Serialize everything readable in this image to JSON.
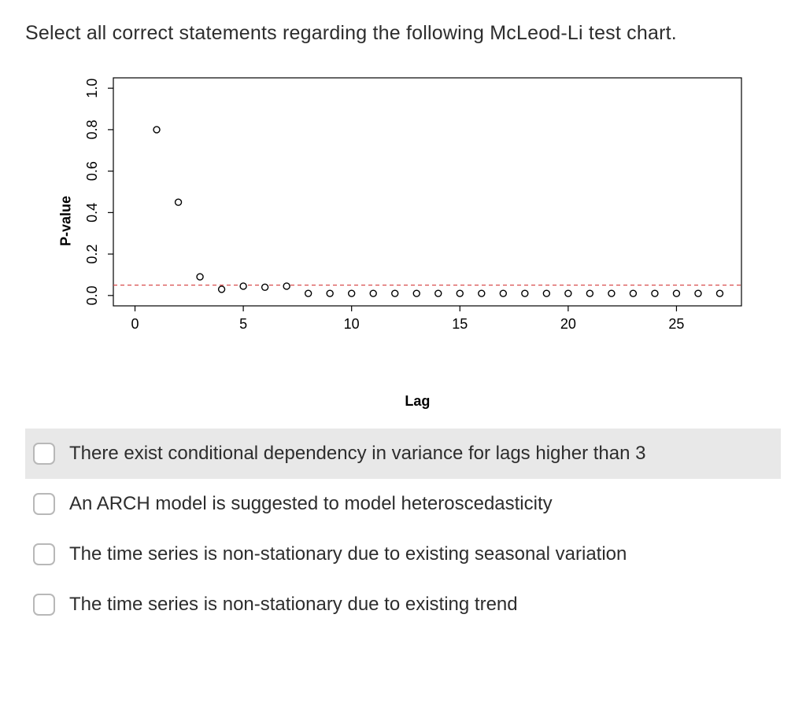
{
  "question": "Select all correct statements regarding the following McLeod-Li test chart.",
  "chart": {
    "type": "scatter",
    "xlabel": "Lag",
    "ylabel": "P-value",
    "xlim": [
      -1,
      28
    ],
    "ylim": [
      -0.05,
      1.05
    ],
    "xticks": [
      0,
      5,
      10,
      15,
      20,
      25
    ],
    "yticks": [
      0.0,
      0.2,
      0.4,
      0.6,
      0.8,
      1.0
    ],
    "xtick_labels": [
      "0",
      "5",
      "10",
      "15",
      "20",
      "25"
    ],
    "ytick_labels": [
      "0.0",
      "0.2",
      "0.4",
      "0.6",
      "0.8",
      "1.0"
    ],
    "threshold_line": {
      "y": 0.05,
      "color": "#d84c4c",
      "dash": "5,4",
      "width": 1.2
    },
    "marker": {
      "radius": 4.0,
      "stroke": "#000000",
      "stroke_width": 1.4,
      "fill": "#ffffff"
    },
    "axis_color": "#000000",
    "axis_width": 1.2,
    "tick_len": 7,
    "label_fontsize": 18,
    "tick_fontsize": 18,
    "background_color": "#ffffff",
    "points": [
      {
        "x": 1,
        "y": 0.8
      },
      {
        "x": 2,
        "y": 0.45
      },
      {
        "x": 3,
        "y": 0.09
      },
      {
        "x": 4,
        "y": 0.03
      },
      {
        "x": 5,
        "y": 0.045
      },
      {
        "x": 6,
        "y": 0.04
      },
      {
        "x": 7,
        "y": 0.045
      },
      {
        "x": 8,
        "y": 0.01
      },
      {
        "x": 9,
        "y": 0.01
      },
      {
        "x": 10,
        "y": 0.01
      },
      {
        "x": 11,
        "y": 0.01
      },
      {
        "x": 12,
        "y": 0.01
      },
      {
        "x": 13,
        "y": 0.01
      },
      {
        "x": 14,
        "y": 0.01
      },
      {
        "x": 15,
        "y": 0.01
      },
      {
        "x": 16,
        "y": 0.01
      },
      {
        "x": 17,
        "y": 0.01
      },
      {
        "x": 18,
        "y": 0.01
      },
      {
        "x": 19,
        "y": 0.01
      },
      {
        "x": 20,
        "y": 0.01
      },
      {
        "x": 21,
        "y": 0.01
      },
      {
        "x": 22,
        "y": 0.01
      },
      {
        "x": 23,
        "y": 0.01
      },
      {
        "x": 24,
        "y": 0.01
      },
      {
        "x": 25,
        "y": 0.01
      },
      {
        "x": 26,
        "y": 0.01
      },
      {
        "x": 27,
        "y": 0.01
      }
    ]
  },
  "options": [
    {
      "label": "There exist conditional dependency in variance for lags higher than 3",
      "highlighted": true
    },
    {
      "label": "An ARCH model is suggested to model heteroscedasticity",
      "highlighted": false
    },
    {
      "label": "The time series is non-stationary due to existing seasonal variation",
      "highlighted": false
    },
    {
      "label": "The time series is non-stationary due to existing trend",
      "highlighted": false
    }
  ]
}
